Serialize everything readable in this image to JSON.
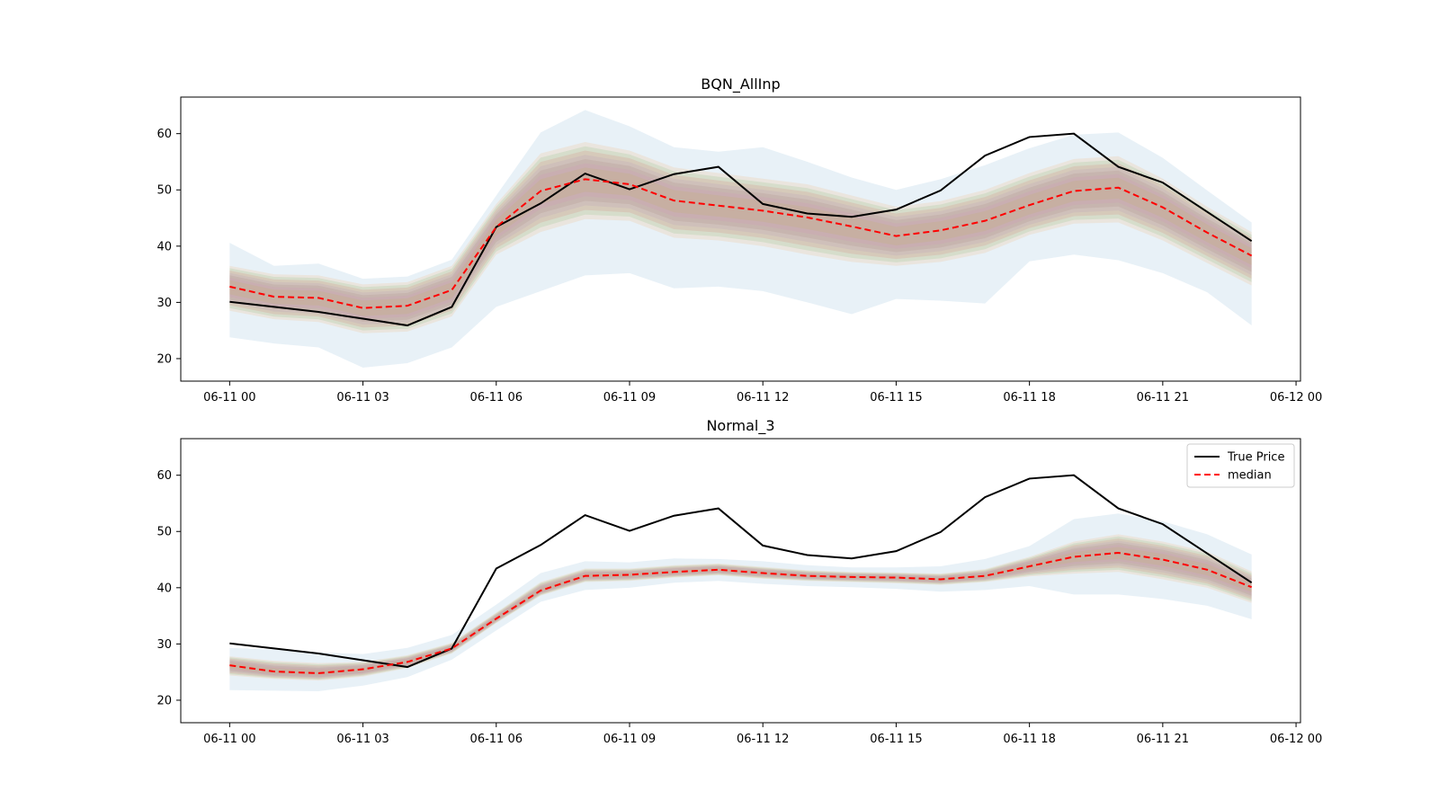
{
  "chart_data": [
    {
      "type": "line",
      "title": "BQN_AllInp",
      "xlabel": "",
      "ylabel": "",
      "x": [
        "06-11 00:00",
        "06-11 01:00",
        "06-11 02:00",
        "06-11 03:00",
        "06-11 04:00",
        "06-11 05:00",
        "06-11 06:00",
        "06-11 07:00",
        "06-11 08:00",
        "06-11 09:00",
        "06-11 10:00",
        "06-11 11:00",
        "06-11 12:00",
        "06-11 13:00",
        "06-11 14:00",
        "06-11 15:00",
        "06-11 16:00",
        "06-11 17:00",
        "06-11 18:00",
        "06-11 19:00",
        "06-11 20:00",
        "06-11 21:00",
        "06-11 22:00",
        "06-11 23:00"
      ],
      "xtick_labels": [
        "06-11 00",
        "06-11 03",
        "06-11 06",
        "06-11 09",
        "06-11 12",
        "06-11 15",
        "06-11 18",
        "06-11 21",
        "06-12 00"
      ],
      "xlim_hours": [
        -1.1,
        24.1
      ],
      "ylim": [
        16,
        66.5
      ],
      "ytick_labels": [
        "20",
        "30",
        "40",
        "50",
        "60"
      ],
      "legend": false,
      "series": [
        {
          "name": "True Price",
          "style": "solid",
          "color": "#000000",
          "values": [
            30.1,
            29.2,
            28.3,
            27.1,
            25.9,
            29.2,
            43.4,
            47.6,
            52.9,
            50.1,
            52.8,
            54.1,
            47.5,
            45.8,
            45.2,
            46.5,
            49.9,
            56.1,
            59.4,
            60.0,
            54.1,
            51.3,
            46.1,
            40.9
          ]
        },
        {
          "name": "median",
          "style": "dashed",
          "color": "#ff0000",
          "values": [
            32.8,
            31.0,
            30.8,
            29.0,
            29.4,
            32.2,
            43.4,
            49.8,
            51.9,
            51.0,
            48.1,
            47.2,
            46.3,
            45.1,
            43.5,
            41.8,
            42.8,
            44.5,
            47.3,
            49.8,
            50.4,
            46.9,
            42.4,
            38.3
          ]
        }
      ],
      "quantile_bands": {
        "lower_5": [
          23.8,
          22.7,
          22.0,
          18.4,
          19.2,
          22.0,
          29.2,
          32.0,
          34.8,
          35.2,
          32.5,
          32.8,
          32.0,
          30.0,
          27.9,
          30.6,
          30.3,
          29.8,
          37.3,
          38.5,
          37.5,
          35.2,
          31.8,
          25.9
        ],
        "upper_95": [
          40.6,
          36.5,
          36.9,
          34.2,
          34.6,
          37.6,
          49.0,
          60.2,
          64.2,
          61.3,
          57.6,
          56.8,
          57.6,
          55.0,
          52.2,
          50.0,
          51.9,
          54.4,
          57.4,
          59.8,
          60.2,
          55.7,
          49.9,
          44.2
        ],
        "lower_25": [
          28.5,
          27.0,
          26.5,
          24.5,
          24.8,
          27.5,
          38.5,
          42.5,
          44.8,
          44.5,
          41.5,
          41.0,
          40.0,
          38.5,
          37.2,
          36.5,
          37.2,
          38.8,
          42.0,
          44.0,
          44.2,
          41.0,
          37.0,
          33.0
        ],
        "upper_75": [
          36.5,
          35.0,
          34.8,
          33.2,
          33.6,
          36.5,
          47.5,
          56.5,
          58.5,
          57.0,
          54.0,
          53.0,
          52.0,
          51.0,
          49.0,
          47.0,
          48.0,
          50.0,
          53.0,
          55.5,
          56.0,
          52.0,
          47.0,
          42.5
        ]
      }
    },
    {
      "type": "line",
      "title": "Normal_3",
      "xlabel": "",
      "ylabel": "",
      "x": [
        "06-11 00:00",
        "06-11 01:00",
        "06-11 02:00",
        "06-11 03:00",
        "06-11 04:00",
        "06-11 05:00",
        "06-11 06:00",
        "06-11 07:00",
        "06-11 08:00",
        "06-11 09:00",
        "06-11 10:00",
        "06-11 11:00",
        "06-11 12:00",
        "06-11 13:00",
        "06-11 14:00",
        "06-11 15:00",
        "06-11 16:00",
        "06-11 17:00",
        "06-11 18:00",
        "06-11 19:00",
        "06-11 20:00",
        "06-11 21:00",
        "06-11 22:00",
        "06-11 23:00"
      ],
      "xtick_labels": [
        "06-11 00",
        "06-11 03",
        "06-11 06",
        "06-11 09",
        "06-11 12",
        "06-11 15",
        "06-11 18",
        "06-11 21",
        "06-12 00"
      ],
      "xlim_hours": [
        -1.1,
        24.1
      ],
      "ylim": [
        16,
        66.5
      ],
      "ytick_labels": [
        "20",
        "30",
        "40",
        "50",
        "60"
      ],
      "legend": true,
      "legend_location": "upper right",
      "series": [
        {
          "name": "True Price",
          "style": "solid",
          "color": "#000000",
          "values": [
            30.1,
            29.2,
            28.3,
            27.1,
            25.9,
            29.2,
            43.4,
            47.6,
            52.9,
            50.1,
            52.8,
            54.1,
            47.5,
            45.8,
            45.2,
            46.5,
            49.9,
            56.1,
            59.4,
            60.0,
            54.1,
            51.3,
            46.1,
            40.9
          ]
        },
        {
          "name": "median",
          "style": "dashed",
          "color": "#ff0000",
          "values": [
            26.2,
            25.1,
            24.8,
            25.5,
            26.8,
            29.2,
            34.5,
            39.5,
            42.1,
            42.3,
            42.8,
            43.2,
            42.6,
            42.1,
            41.9,
            41.8,
            41.5,
            42.1,
            43.8,
            45.5,
            46.2,
            45.0,
            43.2,
            40.1
          ]
        }
      ],
      "quantile_bands": {
        "lower_5": [
          21.8,
          21.7,
          21.6,
          22.6,
          24.1,
          27.2,
          32.4,
          37.5,
          39.6,
          40.0,
          40.9,
          41.2,
          40.7,
          40.3,
          40.1,
          39.8,
          39.3,
          39.6,
          40.3,
          38.8,
          38.8,
          38.0,
          36.8,
          34.4
        ],
        "upper_95": [
          29.3,
          29.0,
          28.5,
          28.2,
          29.3,
          31.6,
          37.0,
          42.6,
          44.7,
          44.5,
          45.2,
          45.1,
          44.7,
          44.0,
          43.6,
          43.6,
          43.8,
          45.1,
          47.4,
          52.2,
          53.2,
          51.8,
          49.5,
          45.9
        ],
        "lower_25": [
          24.4,
          23.8,
          23.5,
          24.2,
          25.7,
          28.3,
          33.7,
          38.6,
          41.0,
          41.2,
          41.8,
          42.2,
          41.6,
          41.2,
          41.0,
          40.8,
          40.5,
          41.0,
          42.0,
          42.5,
          42.8,
          41.5,
          40.0,
          37.3
        ],
        "upper_75": [
          27.8,
          27.0,
          26.6,
          26.8,
          28.0,
          30.2,
          35.6,
          41.0,
          43.4,
          43.4,
          44.0,
          44.3,
          43.7,
          43.1,
          42.8,
          42.7,
          42.5,
          43.3,
          45.5,
          48.2,
          49.5,
          48.2,
          46.4,
          42.9
        ]
      }
    }
  ]
}
